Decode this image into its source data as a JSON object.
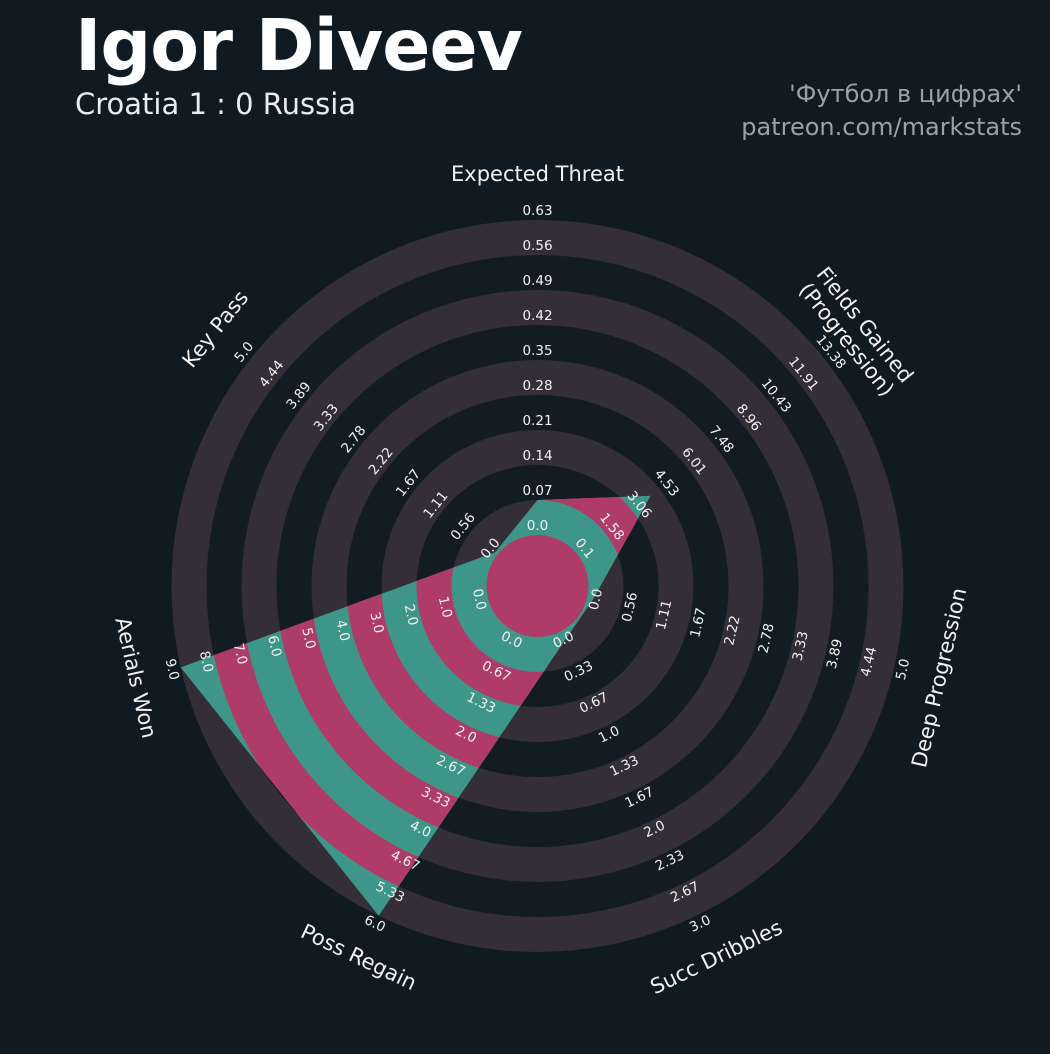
{
  "header": {
    "title": "Igor Diveev",
    "subtitle": "Croatia 1 : 0 Russia",
    "attribution_line1": "'Футбол в цифрах'",
    "attribution_line2": "patreon.com/markstats"
  },
  "colors": {
    "background": "#101a23",
    "ring_light": "#332e37",
    "ring_dark": "#131b24",
    "polygon_teal": "#3E968B",
    "polygon_pink": "#AF3C68",
    "tick_text": "#f2f2f2",
    "axis_title_text": "#f2f2f2",
    "muted_text": "#9aa2a9"
  },
  "chart_data": {
    "type": "radar",
    "title": "Igor Diveev — Croatia 1 : 0 Russia",
    "rings": 9,
    "legend_position": "none",
    "grid": "concentric-circles",
    "axes": [
      {
        "label": "Expected Threat",
        "min": 0.0,
        "max": 0.63,
        "value": 0.07,
        "ticks": [
          "0.0",
          "0.07",
          "0.14",
          "0.21",
          "0.28",
          "0.35",
          "0.42",
          "0.49",
          "0.56",
          "0.63"
        ]
      },
      {
        "label": "Fields Gained\n(Progression)",
        "min": 0.1,
        "max": 13.38,
        "value": 4.05,
        "ticks": [
          "0.1",
          "1.58",
          "3.06",
          "4.53",
          "6.01",
          "7.48",
          "8.96",
          "10.43",
          "11.91",
          "13.38"
        ]
      },
      {
        "label": "Deep Progression",
        "min": 0.0,
        "max": 5.0,
        "value": 0.1,
        "ticks": [
          "0.0",
          "0.56",
          "1.11",
          "1.67",
          "2.22",
          "2.78",
          "3.33",
          "3.89",
          "4.44",
          "5.0"
        ]
      },
      {
        "label": "Succ Dribbles",
        "min": 0.0,
        "max": 3.0,
        "value": 0.1,
        "ticks": [
          "0.0",
          "0.33",
          "0.67",
          "1.0",
          "1.33",
          "1.67",
          "2.0",
          "2.33",
          "2.67",
          "3.0"
        ]
      },
      {
        "label": "Poss Regain",
        "min": 0.0,
        "max": 6.0,
        "value": 6.0,
        "ticks": [
          "0.0",
          "0.67",
          "1.33",
          "2.0",
          "2.67",
          "3.33",
          "4.0",
          "4.67",
          "5.33",
          "6.0"
        ]
      },
      {
        "label": "Aerials Won",
        "min": 0.0,
        "max": 9.0,
        "value": 9.0,
        "ticks": [
          "0.0",
          "1.0",
          "2.0",
          "3.0",
          "4.0",
          "5.0",
          "6.0",
          "7.0",
          "8.0",
          "9.0"
        ]
      },
      {
        "label": "Key Pass",
        "min": 0.0,
        "max": 5.0,
        "value": 0.05,
        "ticks": [
          "0.0",
          "0.56",
          "1.11",
          "1.67",
          "2.22",
          "2.78",
          "3.33",
          "3.89",
          "4.44",
          "5.0"
        ]
      }
    ]
  }
}
